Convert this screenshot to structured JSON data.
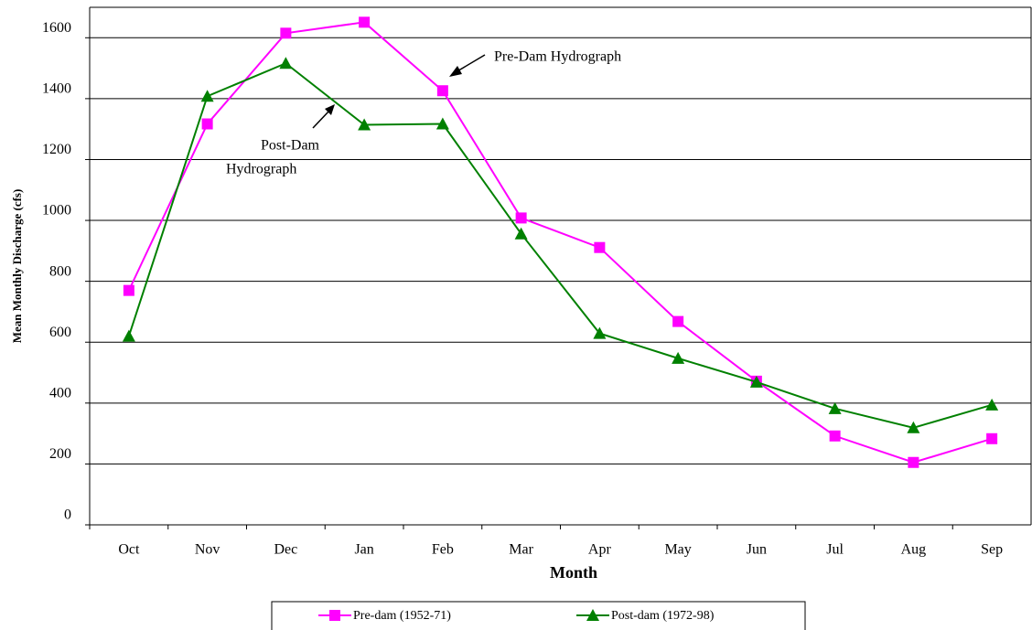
{
  "chart_data": {
    "type": "line",
    "x_label": "Month",
    "y_label": "Mean Monthly Discharge (cfs)",
    "categories": [
      "Oct",
      "Nov",
      "Dec",
      "Jan",
      "Feb",
      "Mar",
      "Apr",
      "May",
      "Jun",
      "Jul",
      "Aug",
      "Sep"
    ],
    "series": [
      {
        "name": "Pre-dam (1952-71)",
        "color": "#ff00ff",
        "marker": "square",
        "values": [
          770,
          1317,
          1615,
          1651,
          1426,
          1008,
          911,
          668,
          472,
          292,
          205,
          283
        ]
      },
      {
        "name": "Post-dam (1972-98)",
        "color": "#008000",
        "marker": "triangle",
        "values": [
          620,
          1408,
          1516,
          1314,
          1317,
          956,
          629,
          547,
          469,
          382,
          319,
          394
        ]
      }
    ],
    "ylim": [
      0,
      1700
    ],
    "yticks": [
      0,
      200,
      400,
      600,
      800,
      1000,
      1200,
      1400,
      1600
    ],
    "grid": true,
    "legend": "bottom",
    "annotations": [
      {
        "lines": [
          "Pre-Dam Hydrograph"
        ]
      },
      {
        "lines": [
          "Post-Dam",
          "Hydrograph"
        ]
      }
    ]
  }
}
